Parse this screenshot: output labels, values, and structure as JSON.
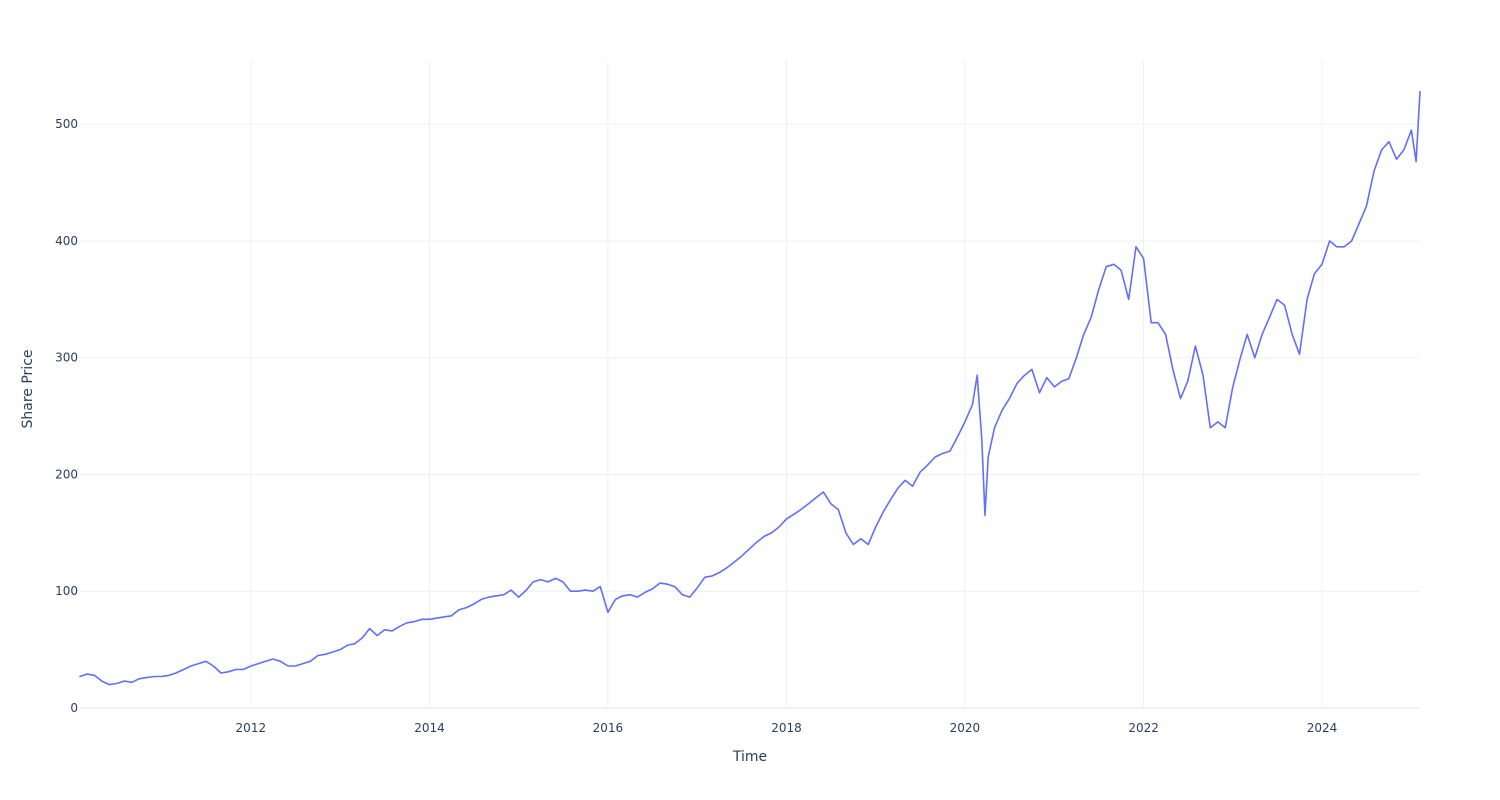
{
  "chart_data": {
    "type": "line",
    "title": "",
    "xlabel": "Time",
    "ylabel": "Share Price",
    "x_ticks": [
      "2012",
      "2014",
      "2016",
      "2018",
      "2020",
      "2022",
      "2024"
    ],
    "y_ticks": [
      "0",
      "100",
      "200",
      "300",
      "400",
      "500"
    ],
    "xlim": [
      "2010-02-01",
      "2025-02-05"
    ],
    "ylim": [
      0,
      555
    ],
    "grid": true,
    "legend": "none",
    "colors": {
      "line": "#636efa",
      "grid": "#eef0f4",
      "text": "#2a3f5f"
    },
    "series": [
      {
        "x": [
          "2010-02-01",
          "2010-03-01",
          "2010-04-01",
          "2010-05-01",
          "2010-06-01",
          "2010-07-01",
          "2010-08-01",
          "2010-09-01",
          "2010-10-01",
          "2010-11-01",
          "2010-12-01",
          "2011-01-01",
          "2011-02-01",
          "2011-03-01",
          "2011-04-01",
          "2011-05-01",
          "2011-06-01",
          "2011-07-01",
          "2011-08-01",
          "2011-09-01",
          "2011-10-01",
          "2011-11-01",
          "2011-12-01",
          "2012-01-01",
          "2012-02-01",
          "2012-03-01",
          "2012-04-01",
          "2012-05-01",
          "2012-06-01",
          "2012-07-01",
          "2012-08-01",
          "2012-09-01",
          "2012-10-01",
          "2012-11-01",
          "2012-12-01",
          "2013-01-01",
          "2013-02-01",
          "2013-03-01",
          "2013-04-01",
          "2013-05-01",
          "2013-06-01",
          "2013-07-01",
          "2013-08-01",
          "2013-09-01",
          "2013-10-01",
          "2013-11-01",
          "2013-12-01",
          "2014-01-01",
          "2014-02-01",
          "2014-03-01",
          "2014-04-01",
          "2014-05-01",
          "2014-06-01",
          "2014-07-01",
          "2014-08-01",
          "2014-09-01",
          "2014-10-01",
          "2014-11-01",
          "2014-12-01",
          "2015-01-01",
          "2015-02-01",
          "2015-03-01",
          "2015-04-01",
          "2015-05-01",
          "2015-06-01",
          "2015-07-01",
          "2015-08-01",
          "2015-09-01",
          "2015-10-01",
          "2015-11-01",
          "2015-12-01",
          "2016-01-01",
          "2016-02-01",
          "2016-03-01",
          "2016-04-01",
          "2016-05-01",
          "2016-06-01",
          "2016-07-01",
          "2016-08-01",
          "2016-09-01",
          "2016-10-01",
          "2016-11-01",
          "2016-12-01",
          "2017-01-01",
          "2017-02-01",
          "2017-03-01",
          "2017-04-01",
          "2017-05-01",
          "2017-06-01",
          "2017-07-01",
          "2017-08-01",
          "2017-09-01",
          "2017-10-01",
          "2017-11-01",
          "2017-12-01",
          "2018-01-01",
          "2018-02-01",
          "2018-03-01",
          "2018-04-01",
          "2018-05-01",
          "2018-06-01",
          "2018-07-01",
          "2018-08-01",
          "2018-09-01",
          "2018-10-01",
          "2018-11-01",
          "2018-12-01",
          "2019-01-01",
          "2019-02-01",
          "2019-03-01",
          "2019-04-01",
          "2019-05-01",
          "2019-06-01",
          "2019-07-01",
          "2019-08-01",
          "2019-09-01",
          "2019-10-01",
          "2019-11-01",
          "2019-12-01",
          "2020-01-01",
          "2020-02-01",
          "2020-02-20",
          "2020-03-10",
          "2020-03-23",
          "2020-04-05",
          "2020-05-01",
          "2020-06-01",
          "2020-07-01",
          "2020-08-01",
          "2020-09-01",
          "2020-10-01",
          "2020-11-01",
          "2020-12-01",
          "2021-01-01",
          "2021-02-01",
          "2021-03-01",
          "2021-04-01",
          "2021-05-01",
          "2021-06-01",
          "2021-07-01",
          "2021-08-01",
          "2021-09-01",
          "2021-10-01",
          "2021-11-01",
          "2021-12-01",
          "2022-01-01",
          "2022-02-01",
          "2022-03-01",
          "2022-04-01",
          "2022-05-01",
          "2022-06-01",
          "2022-07-01",
          "2022-08-01",
          "2022-09-01",
          "2022-10-01",
          "2022-11-01",
          "2022-12-01",
          "2023-01-01",
          "2023-02-01",
          "2023-03-01",
          "2023-04-01",
          "2023-05-01",
          "2023-06-01",
          "2023-07-01",
          "2023-08-01",
          "2023-09-01",
          "2023-10-01",
          "2023-11-01",
          "2023-12-01",
          "2024-01-01",
          "2024-02-01",
          "2024-03-01",
          "2024-04-01",
          "2024-05-01",
          "2024-06-01",
          "2024-07-01",
          "2024-08-01",
          "2024-09-01",
          "2024-10-01",
          "2024-11-01",
          "2024-12-01",
          "2025-01-01",
          "2025-01-20",
          "2025-02-05"
        ],
        "y": [
          27,
          29,
          28,
          23,
          20,
          21,
          23,
          22,
          25,
          26,
          27,
          27,
          28,
          30,
          33,
          36,
          38,
          40,
          36,
          30,
          31,
          33,
          33,
          36,
          38,
          40,
          42,
          40,
          36,
          36,
          38,
          40,
          45,
          46,
          48,
          50,
          54,
          55,
          60,
          68,
          62,
          67,
          66,
          70,
          73,
          74,
          76,
          76,
          77,
          78,
          79,
          84,
          86,
          89,
          93,
          95,
          96,
          97,
          101,
          95,
          101,
          108,
          110,
          108,
          111,
          108,
          100,
          100,
          101,
          100,
          104,
          82,
          93,
          96,
          97,
          95,
          99,
          102,
          107,
          106,
          104,
          97,
          95,
          103,
          112,
          113,
          116,
          120,
          125,
          130,
          136,
          142,
          147,
          150,
          155,
          162,
          166,
          170,
          175,
          180,
          185,
          175,
          170,
          150,
          140,
          145,
          140,
          155,
          168,
          178,
          188,
          195,
          190,
          202,
          208,
          215,
          218,
          220,
          232,
          245,
          260,
          285,
          230,
          165,
          215,
          240,
          255,
          265,
          278,
          285,
          290,
          270,
          283,
          275,
          280,
          282,
          300,
          320,
          335,
          358,
          378,
          380,
          375,
          350,
          395,
          385,
          330,
          330,
          320,
          290,
          265,
          280,
          310,
          285,
          240,
          245,
          240,
          275,
          300,
          320,
          300,
          320,
          335,
          350,
          345,
          320,
          303,
          350,
          372,
          380,
          400,
          395,
          395,
          400,
          415,
          430,
          460,
          478,
          485,
          470,
          478,
          495,
          468,
          528
        ]
      }
    ]
  }
}
